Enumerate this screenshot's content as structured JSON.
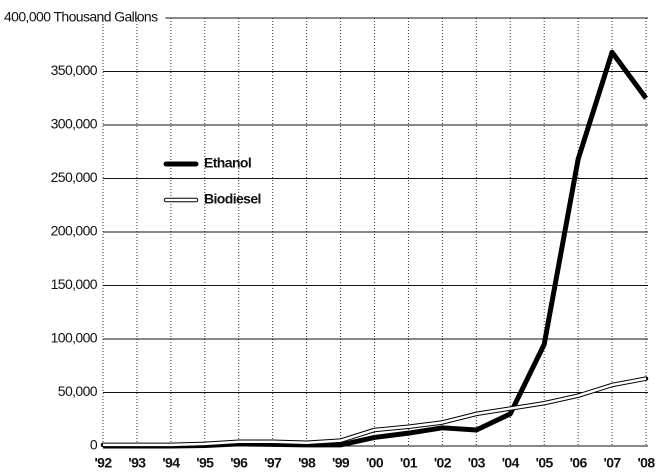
{
  "chart_data": {
    "type": "line",
    "categories": [
      "'92",
      "'93",
      "'94",
      "'95",
      "'96",
      "'97",
      "'98",
      "'99",
      "'00",
      "'01",
      "'02",
      "'03",
      "'04",
      "'05",
      "'06",
      "'07",
      "'08"
    ],
    "series": [
      {
        "name": "Ethanol",
        "color": "#000000",
        "values": [
          0,
          0,
          0,
          500,
          2000,
          1500,
          1000,
          1000,
          8000,
          12000,
          17000,
          15000,
          30000,
          95000,
          268000,
          368000,
          325000
        ]
      },
      {
        "name": "Biodiesel",
        "color": "#ffffff",
        "values": [
          1000,
          1000,
          1000,
          2000,
          4000,
          4000,
          3000,
          5000,
          15000,
          18000,
          22000,
          30000,
          35000,
          40000,
          47000,
          57000,
          63000
        ]
      }
    ],
    "ylim": [
      0,
      400000
    ],
    "yticks": [
      0,
      {
        "value": 50000,
        "label": "50,000"
      },
      {
        "value": 100000,
        "label": "100,000"
      },
      {
        "value": 150000,
        "label": "150,000"
      },
      {
        "value": 200000,
        "label": "200,000"
      },
      {
        "value": 250000,
        "label": "250,000"
      },
      {
        "value": 300000,
        "label": "300,000"
      },
      {
        "value": 350000,
        "label": "350,000"
      },
      {
        "value": 400000,
        "label": "400,000 Thousand Gallons"
      }
    ],
    "grid": true,
    "legend": "upper left"
  }
}
